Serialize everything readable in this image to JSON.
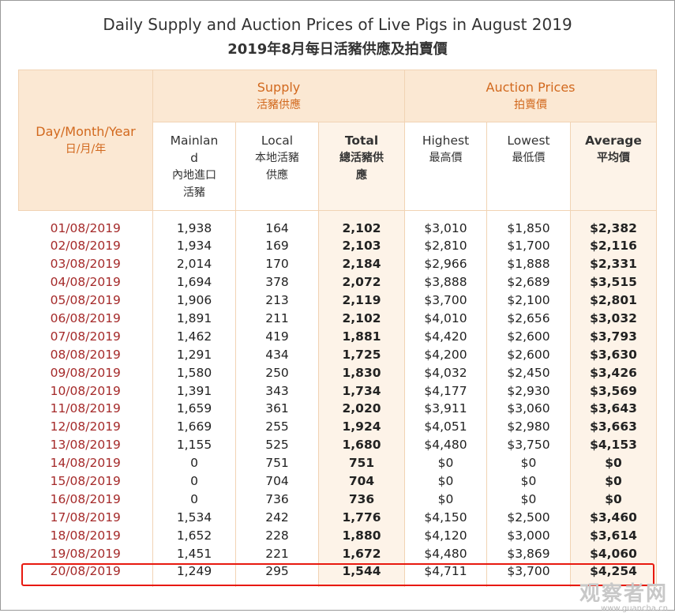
{
  "title_en": "Daily Supply and Auction Prices of Live Pigs in August 2019",
  "title_zh": "2019年8月每日活豬供應及拍賣價",
  "header": {
    "date_en": "Day/Month/Year",
    "date_zh": "日/月/年",
    "supply_en": "Supply",
    "supply_zh": "活豬供應",
    "prices_en": "Auction Prices",
    "prices_zh": "拍賣價",
    "mainland_en": "Mainland",
    "mainland_zh": "內地進口活豬",
    "local_en": "Local",
    "local_zh": "本地活豬供應",
    "total_en": "Total",
    "total_zh": "總活豬供應",
    "highest_en": "Highest",
    "highest_zh": "最高價",
    "lowest_en": "Lowest",
    "lowest_zh": "最低價",
    "average_en": "Average",
    "average_zh": "平均價"
  },
  "rows": [
    {
      "date": "01/08/2019",
      "mainland": "1,938",
      "local": "164",
      "total": "2,102",
      "highest": "$3,010",
      "lowest": "$1,850",
      "average": "$2,382"
    },
    {
      "date": "02/08/2019",
      "mainland": "1,934",
      "local": "169",
      "total": "2,103",
      "highest": "$2,810",
      "lowest": "$1,700",
      "average": "$2,116"
    },
    {
      "date": "03/08/2019",
      "mainland": "2,014",
      "local": "170",
      "total": "2,184",
      "highest": "$2,966",
      "lowest": "$1,888",
      "average": "$2,331"
    },
    {
      "date": "04/08/2019",
      "mainland": "1,694",
      "local": "378",
      "total": "2,072",
      "highest": "$3,888",
      "lowest": "$2,689",
      "average": "$3,515"
    },
    {
      "date": "05/08/2019",
      "mainland": "1,906",
      "local": "213",
      "total": "2,119",
      "highest": "$3,700",
      "lowest": "$2,100",
      "average": "$2,801"
    },
    {
      "date": "06/08/2019",
      "mainland": "1,891",
      "local": "211",
      "total": "2,102",
      "highest": "$4,010",
      "lowest": "$2,656",
      "average": "$3,032"
    },
    {
      "date": "07/08/2019",
      "mainland": "1,462",
      "local": "419",
      "total": "1,881",
      "highest": "$4,420",
      "lowest": "$2,600",
      "average": "$3,793"
    },
    {
      "date": "08/08/2019",
      "mainland": "1,291",
      "local": "434",
      "total": "1,725",
      "highest": "$4,200",
      "lowest": "$2,600",
      "average": "$3,630"
    },
    {
      "date": "09/08/2019",
      "mainland": "1,580",
      "local": "250",
      "total": "1,830",
      "highest": "$4,032",
      "lowest": "$2,450",
      "average": "$3,426"
    },
    {
      "date": "10/08/2019",
      "mainland": "1,391",
      "local": "343",
      "total": "1,734",
      "highest": "$4,177",
      "lowest": "$2,930",
      "average": "$3,569"
    },
    {
      "date": "11/08/2019",
      "mainland": "1,659",
      "local": "361",
      "total": "2,020",
      "highest": "$3,911",
      "lowest": "$3,060",
      "average": "$3,643"
    },
    {
      "date": "12/08/2019",
      "mainland": "1,669",
      "local": "255",
      "total": "1,924",
      "highest": "$4,051",
      "lowest": "$2,980",
      "average": "$3,663"
    },
    {
      "date": "13/08/2019",
      "mainland": "1,155",
      "local": "525",
      "total": "1,680",
      "highest": "$4,480",
      "lowest": "$3,750",
      "average": "$4,153"
    },
    {
      "date": "14/08/2019",
      "mainland": "0",
      "local": "751",
      "total": "751",
      "highest": "$0",
      "lowest": "$0",
      "average": "$0"
    },
    {
      "date": "15/08/2019",
      "mainland": "0",
      "local": "704",
      "total": "704",
      "highest": "$0",
      "lowest": "$0",
      "average": "$0"
    },
    {
      "date": "16/08/2019",
      "mainland": "0",
      "local": "736",
      "total": "736",
      "highest": "$0",
      "lowest": "$0",
      "average": "$0"
    },
    {
      "date": "17/08/2019",
      "mainland": "1,534",
      "local": "242",
      "total": "1,776",
      "highest": "$4,150",
      "lowest": "$2,500",
      "average": "$3,460"
    },
    {
      "date": "18/08/2019",
      "mainland": "1,652",
      "local": "228",
      "total": "1,880",
      "highest": "$4,120",
      "lowest": "$3,000",
      "average": "$3,614"
    },
    {
      "date": "19/08/2019",
      "mainland": "1,451",
      "local": "221",
      "total": "1,672",
      "highest": "$4,480",
      "lowest": "$3,869",
      "average": "$4,060"
    },
    {
      "date": "20/08/2019",
      "mainland": "1,249",
      "local": "295",
      "total": "1,544",
      "highest": "$4,711",
      "lowest": "$3,700",
      "average": "$4,254"
    }
  ],
  "watermark": {
    "main": "观察者网",
    "sub": "www.guancha.cn"
  },
  "colors": {
    "header_bg": "#fbe8d3",
    "header_text": "#d2691e",
    "date_text": "#a52a2a",
    "shade": "#fdf3e8",
    "highlight": "#e8190f"
  }
}
